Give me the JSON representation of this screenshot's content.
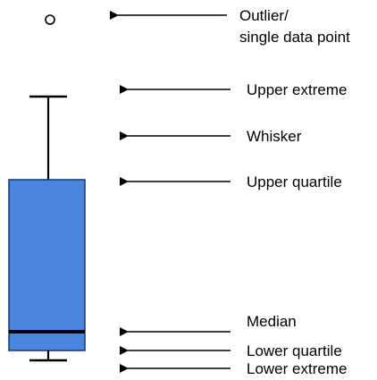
{
  "colors": {
    "box_fill": "#4a86e0",
    "box_stroke": "#1f3f7a",
    "median_line": "#000000",
    "lines": "#000000",
    "background": "#ffffff"
  },
  "labels": {
    "outlier_line1": "Outlier/",
    "outlier_line2": "single data point",
    "upper_extreme": "Upper extreme",
    "whisker": "Whisker",
    "upper_quartile": "Upper quartile",
    "median": "Median",
    "lower_quartile": "Lower quartile",
    "lower_extreme": "Lower extreme"
  },
  "icons": {
    "arrow": "left-arrow-icon",
    "outlier": "circle-icon"
  }
}
